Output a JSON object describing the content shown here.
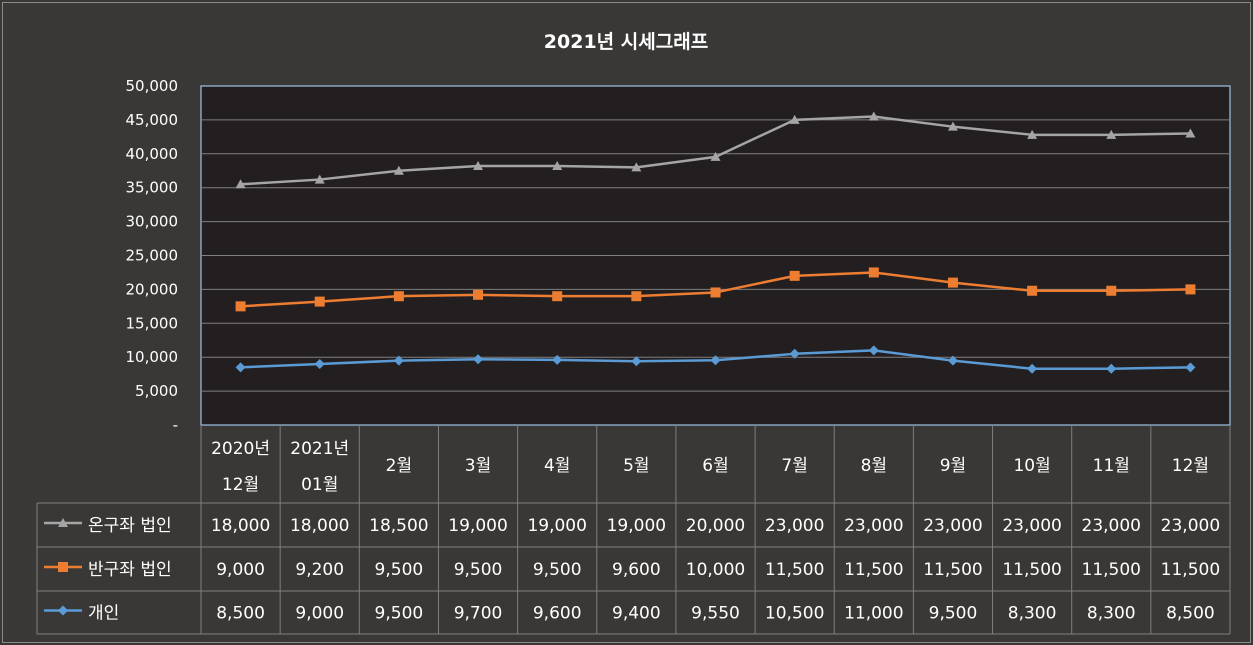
{
  "chart_data": {
    "type": "line",
    "title": "2021년 시세그래프",
    "categories": [
      [
        "2020년",
        "12월"
      ],
      [
        "2021년",
        "01월"
      ],
      [
        "2월"
      ],
      [
        "3월"
      ],
      [
        "4월"
      ],
      [
        "5월"
      ],
      [
        "6월"
      ],
      [
        "7월"
      ],
      [
        "8월"
      ],
      [
        "9월"
      ],
      [
        "10월"
      ],
      [
        "11월"
      ],
      [
        "12월"
      ]
    ],
    "ylim": [
      0,
      50000
    ],
    "yticks": [
      "-",
      "5,000",
      "10,000",
      "15,000",
      "20,000",
      "25,000",
      "30,000",
      "35,000",
      "40,000",
      "45,000",
      "50,000"
    ],
    "grid": true,
    "legend": "table-below",
    "series": [
      {
        "name": "온구좌 법인",
        "color": "#a5a5a5",
        "marker": "triangle",
        "values": [
          35500,
          36200,
          37500,
          38200,
          38200,
          38000,
          39550,
          45000,
          45500,
          44000,
          42800,
          42800,
          43000
        ],
        "table_values": [
          "18,000",
          "18,000",
          "18,500",
          "19,000",
          "19,000",
          "19,000",
          "20,000",
          "23,000",
          "23,000",
          "23,000",
          "23,000",
          "23,000",
          "23,000"
        ]
      },
      {
        "name": "반구좌 법인",
        "color": "#ed7d31",
        "marker": "square",
        "values": [
          17500,
          18200,
          19000,
          19200,
          19000,
          19000,
          19550,
          22000,
          22500,
          21000,
          19800,
          19800,
          20000
        ],
        "table_values": [
          "9,000",
          "9,200",
          "9,500",
          "9,500",
          "9,500",
          "9,600",
          "10,000",
          "11,500",
          "11,500",
          "11,500",
          "11,500",
          "11,500",
          "11,500"
        ]
      },
      {
        "name": "개인",
        "color": "#5b9bd5",
        "marker": "diamond",
        "values": [
          8500,
          9000,
          9500,
          9700,
          9600,
          9400,
          9550,
          10500,
          11000,
          9500,
          8300,
          8300,
          8500
        ],
        "table_values": [
          "8,500",
          "9,000",
          "9,500",
          "9,700",
          "9,600",
          "9,400",
          "9,550",
          "10,500",
          "11,000",
          "9,500",
          "8,300",
          "8,300",
          "8,500"
        ]
      }
    ],
    "colors": {
      "background": "#3a3836",
      "plot_area": "#231f20",
      "plot_border": "#9dc3e6",
      "grid": "#7f7f7f"
    }
  }
}
